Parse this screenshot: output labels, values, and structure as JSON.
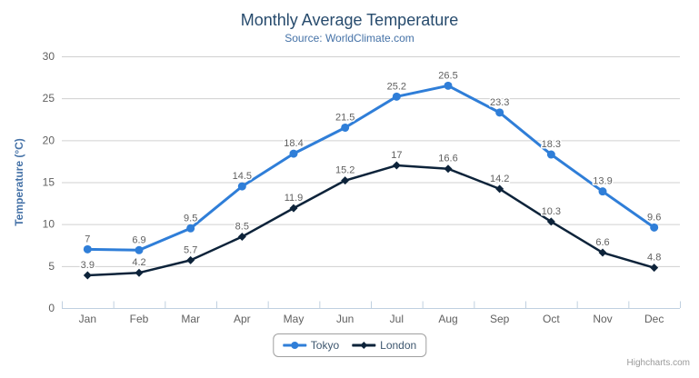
{
  "chart_data": {
    "type": "line",
    "title": "Monthly Average Temperature",
    "subtitle": "Source: WorldClimate.com",
    "categories": [
      "Jan",
      "Feb",
      "Mar",
      "Apr",
      "May",
      "Jun",
      "Jul",
      "Aug",
      "Sep",
      "Oct",
      "Nov",
      "Dec"
    ],
    "series": [
      {
        "name": "Tokyo",
        "color": "#2f7ed8",
        "marker": "circle",
        "values": [
          7,
          6.9,
          9.5,
          14.5,
          18.4,
          21.5,
          25.2,
          26.5,
          23.3,
          18.3,
          13.9,
          9.6
        ]
      },
      {
        "name": "London",
        "color": "#0d233a",
        "marker": "diamond",
        "values": [
          3.9,
          4.2,
          5.7,
          8.5,
          11.9,
          15.2,
          17,
          16.6,
          14.2,
          10.3,
          6.6,
          4.8
        ]
      }
    ],
    "xlabel": "",
    "ylabel": "Temperature (°C)",
    "ylim": [
      0,
      30
    ],
    "ytick_interval": 5,
    "grid": true,
    "data_labels": true,
    "legend_position": "bottom"
  },
  "colors": {
    "background": "#ffffff",
    "title": "#274b6d",
    "subtitle": "#4572A7",
    "axis_title": "#4572A7",
    "axis_labels": "#606060",
    "data_labels": "#606060",
    "gridline": "#d0d0d0",
    "axis_line": "#c0d0e0",
    "legend_text": "#3E576F",
    "menu_icon": "#666666"
  },
  "credits": {
    "label": "Highcharts.com"
  }
}
